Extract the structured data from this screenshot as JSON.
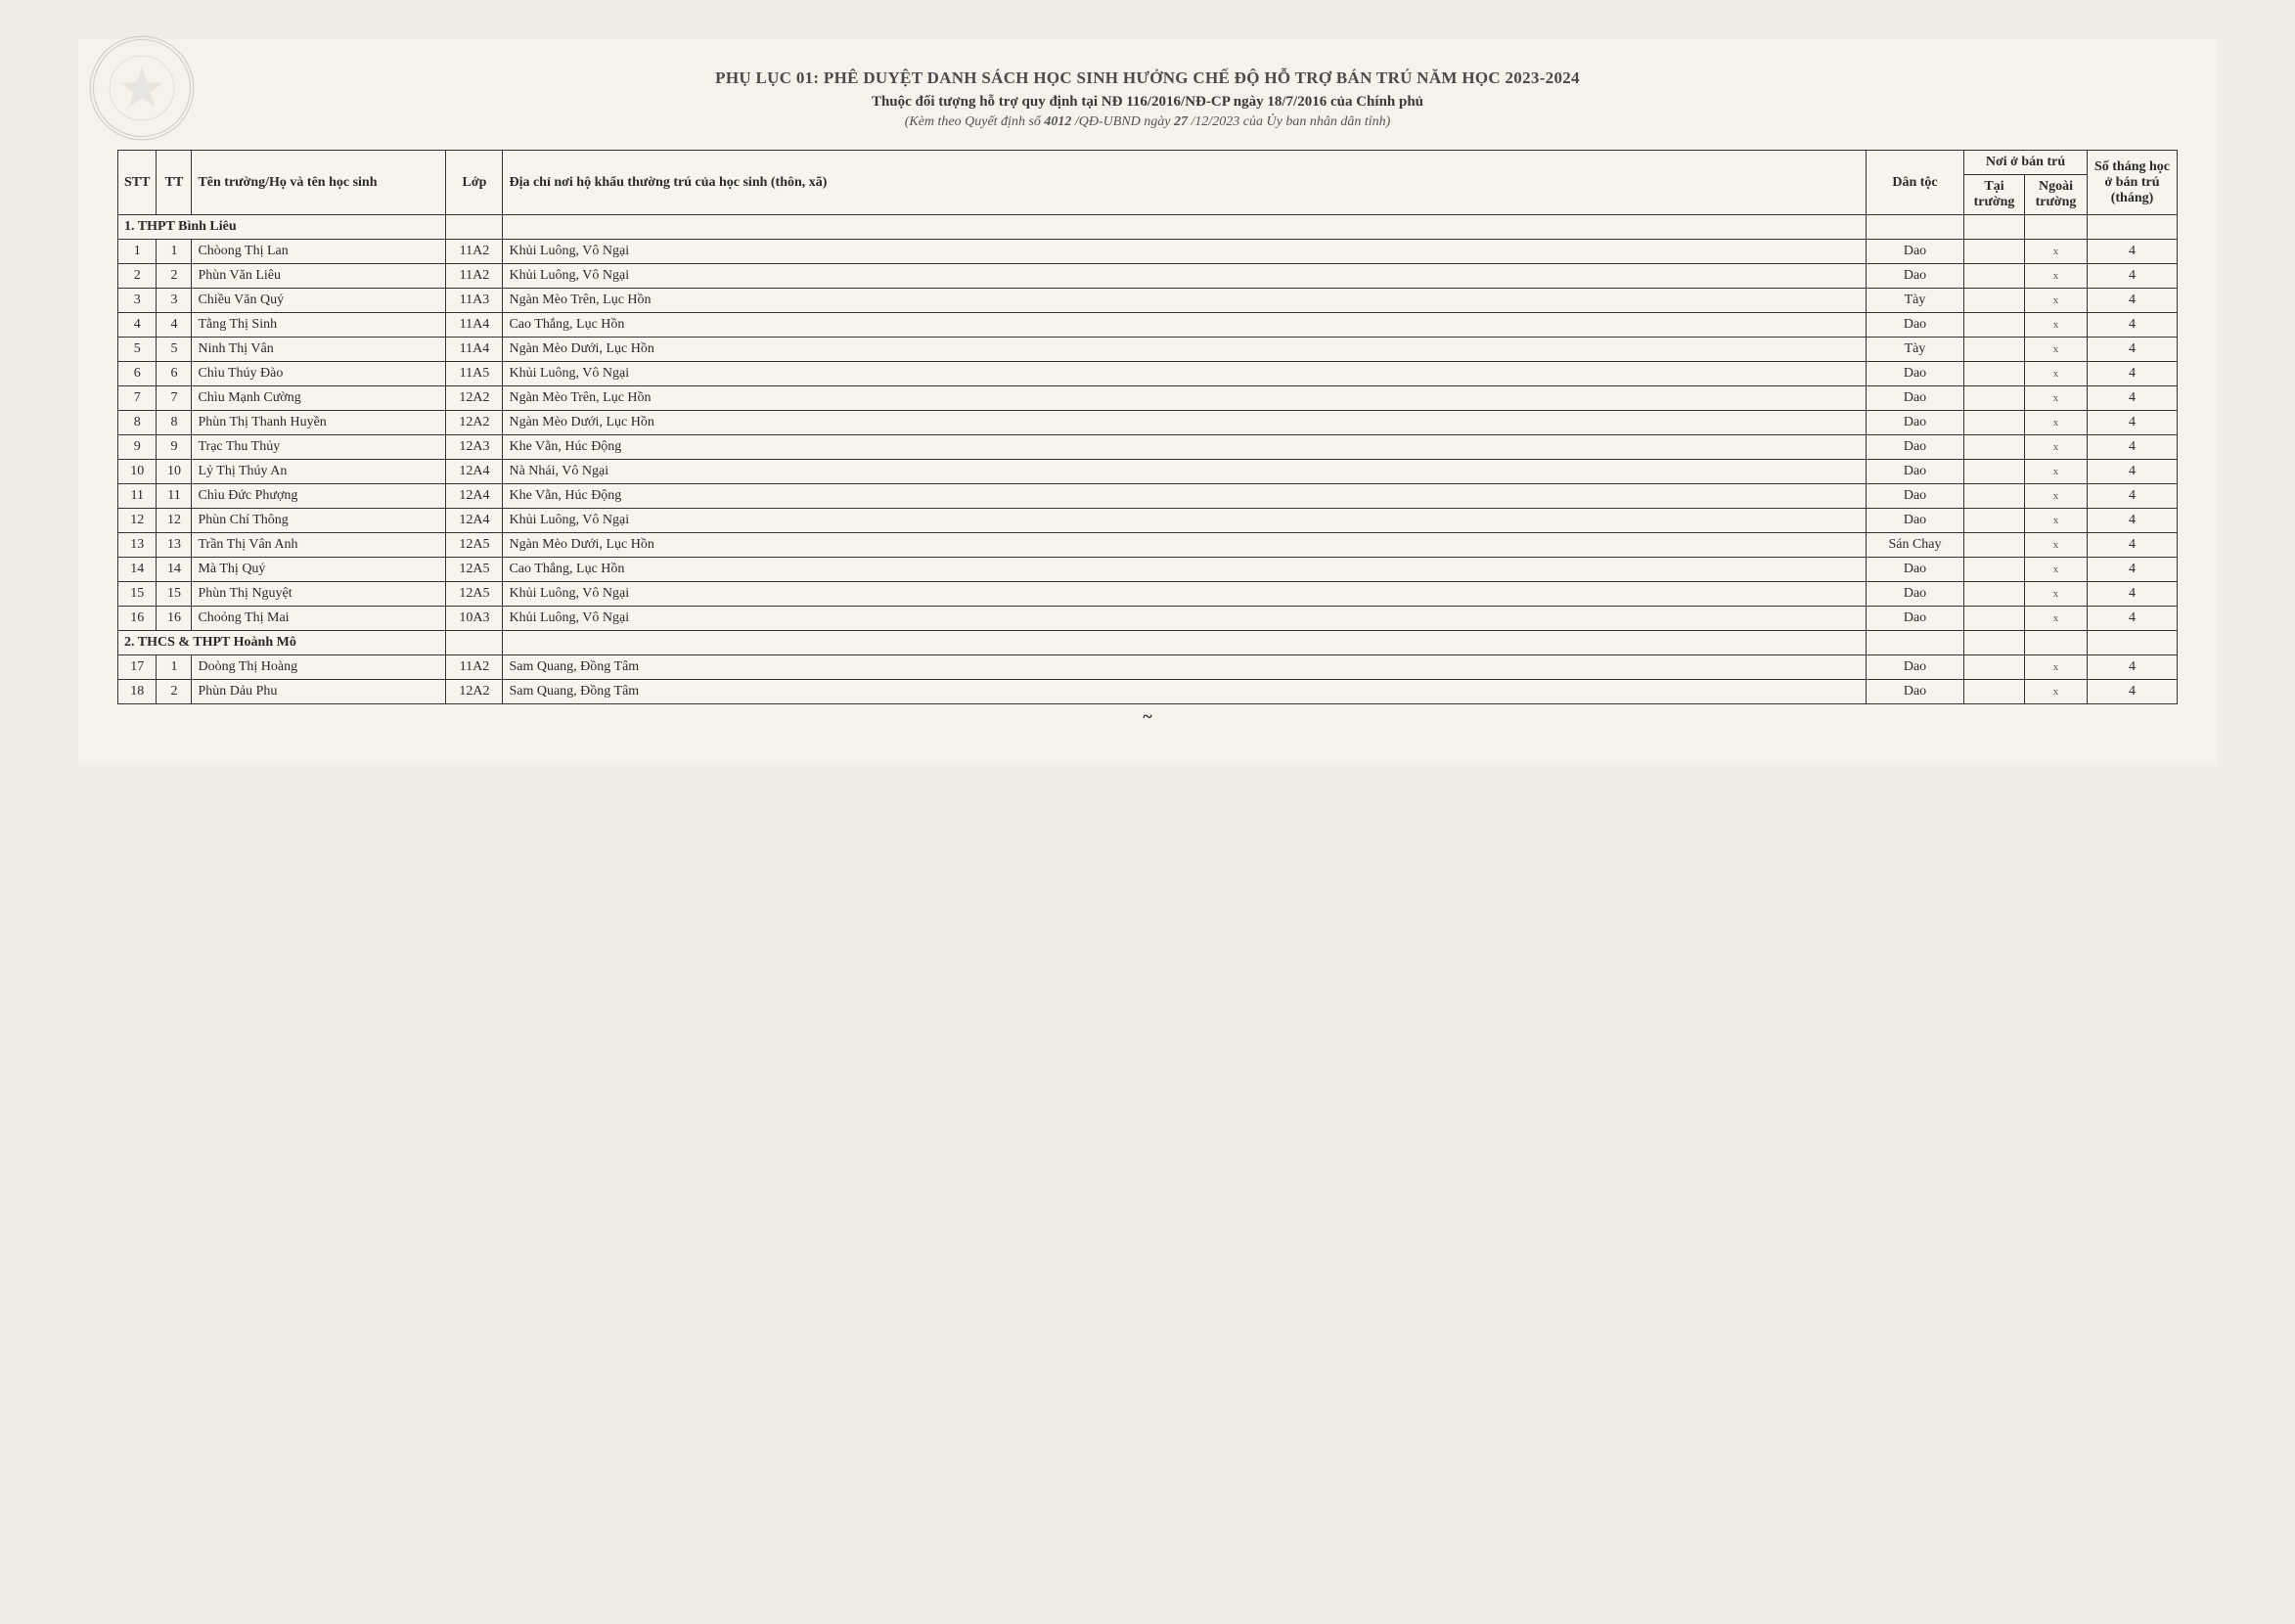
{
  "header": {
    "title_main": "PHỤ LỤC 01: PHÊ DUYỆT DANH SÁCH HỌC SINH HƯỞNG CHẾ ĐỘ HỖ TRỢ BÁN TRÚ NĂM HỌC 2023-2024",
    "title_sub1": "Thuộc đối tượng hỗ trợ quy định tại NĐ 116/2016/NĐ-CP ngày 18/7/2016 của Chính phủ",
    "title_sub2_prefix": "(Kèm theo Quyết định số ",
    "decision_number": "4012",
    "title_sub2_mid": " /QĐ-UBND ngày ",
    "decision_day": "27",
    "title_sub2_suffix": "/12/2023 của Ủy ban nhân dân tỉnh)"
  },
  "columns": {
    "stt": "STT",
    "tt": "TT",
    "name": "Tên trường/Họ và tên học sinh",
    "class": "Lớp",
    "address": "Địa chỉ nơi hộ khẩu thường trú của học sinh (thôn, xã)",
    "ethnic": "Dân tộc",
    "boarding_group": "Nơi ở bán trú",
    "in_school": "Tại trường",
    "out_school": "Ngoài trường",
    "months": "Số tháng học ở bán trú (tháng)"
  },
  "sections": [
    {
      "title": "1. THPT Bình Liêu",
      "rows": [
        {
          "stt": "1",
          "tt": "1",
          "name": "Chòong Thị Lan",
          "class": "11A2",
          "address": "Khủi Luông, Vô Ngại",
          "ethnic": "Dao",
          "in": "",
          "out": "x",
          "months": "4"
        },
        {
          "stt": "2",
          "tt": "2",
          "name": "Phùn Văn Liêu",
          "class": "11A2",
          "address": "Khủi Luông, Vô Ngại",
          "ethnic": "Dao",
          "in": "",
          "out": "x",
          "months": "4"
        },
        {
          "stt": "3",
          "tt": "3",
          "name": "Chiều Văn Quý",
          "class": "11A3",
          "address": "Ngàn Mèo Trên, Lục Hồn",
          "ethnic": "Tày",
          "in": "",
          "out": "x",
          "months": "4"
        },
        {
          "stt": "4",
          "tt": "4",
          "name": "Tằng Thị Sinh",
          "class": "11A4",
          "address": "Cao Thắng, Lục Hồn",
          "ethnic": "Dao",
          "in": "",
          "out": "x",
          "months": "4"
        },
        {
          "stt": "5",
          "tt": "5",
          "name": "Ninh Thị Vân",
          "class": "11A4",
          "address": "Ngàn Mèo Dưới, Lục Hồn",
          "ethnic": "Tày",
          "in": "",
          "out": "x",
          "months": "4"
        },
        {
          "stt": "6",
          "tt": "6",
          "name": "Chìu Thúy Đào",
          "class": "11A5",
          "address": "Khủi Luông, Vô Ngại",
          "ethnic": "Dao",
          "in": "",
          "out": "x",
          "months": "4"
        },
        {
          "stt": "7",
          "tt": "7",
          "name": "Chìu Mạnh Cường",
          "class": "12A2",
          "address": "Ngàn Mèo Trên, Lục Hồn",
          "ethnic": "Dao",
          "in": "",
          "out": "x",
          "months": "4"
        },
        {
          "stt": "8",
          "tt": "8",
          "name": "Phùn Thị Thanh Huyền",
          "class": "12A2",
          "address": "Ngàn Mèo Dưới, Lục Hồn",
          "ethnic": "Dao",
          "in": "",
          "out": "x",
          "months": "4"
        },
        {
          "stt": "9",
          "tt": "9",
          "name": "Trạc Thu Thủy",
          "class": "12A3",
          "address": "Khe Vằn, Húc Động",
          "ethnic": "Dao",
          "in": "",
          "out": "x",
          "months": "4"
        },
        {
          "stt": "10",
          "tt": "10",
          "name": "Lỷ Thị Thúy An",
          "class": "12A4",
          "address": "Nà Nhái, Vô Ngại",
          "ethnic": "Dao",
          "in": "",
          "out": "x",
          "months": "4"
        },
        {
          "stt": "11",
          "tt": "11",
          "name": "Chìu Đức Phượng",
          "class": "12A4",
          "address": "Khe Vằn, Húc Động",
          "ethnic": "Dao",
          "in": "",
          "out": "x",
          "months": "4"
        },
        {
          "stt": "12",
          "tt": "12",
          "name": "Phùn Chí Thông",
          "class": "12A4",
          "address": "Khủi Luông, Vô Ngại",
          "ethnic": "Dao",
          "in": "",
          "out": "x",
          "months": "4"
        },
        {
          "stt": "13",
          "tt": "13",
          "name": "Trần Thị Vân Anh",
          "class": "12A5",
          "address": "Ngàn Mèo Dưới, Lục Hồn",
          "ethnic": "Sán Chay",
          "in": "",
          "out": "x",
          "months": "4"
        },
        {
          "stt": "14",
          "tt": "14",
          "name": "Mà Thị Quý",
          "class": "12A5",
          "address": "Cao Thắng, Lục Hồn",
          "ethnic": "Dao",
          "in": "",
          "out": "x",
          "months": "4"
        },
        {
          "stt": "15",
          "tt": "15",
          "name": "Phùn Thị Nguyệt",
          "class": "12A5",
          "address": "Khủi Luông, Vô Ngại",
          "ethnic": "Dao",
          "in": "",
          "out": "x",
          "months": "4"
        },
        {
          "stt": "16",
          "tt": "16",
          "name": "Choỏng Thị Mai",
          "class": "10A3",
          "address": "Khủi Luông, Vô Ngại",
          "ethnic": "Dao",
          "in": "",
          "out": "x",
          "months": "4"
        }
      ]
    },
    {
      "title": "2. THCS & THPT Hoành Mô",
      "rows": [
        {
          "stt": "17",
          "tt": "1",
          "name": "Doòng Thị Hoàng",
          "class": "11A2",
          "address": "Sam Quang, Đồng Tâm",
          "ethnic": "Dao",
          "in": "",
          "out": "x",
          "months": "4"
        },
        {
          "stt": "18",
          "tt": "2",
          "name": "Phùn Dảu Phu",
          "class": "12A2",
          "address": "Sam Quang, Đồng Tâm",
          "ethnic": "Dao",
          "in": "",
          "out": "x",
          "months": "4"
        }
      ]
    }
  ],
  "styling": {
    "page_bg": "#f5f2eb",
    "text_color": "#2a2a2a",
    "border_color": "#333333",
    "header_font_size_pt": 13,
    "body_font_size_pt": 11,
    "font_family": "Times New Roman"
  }
}
